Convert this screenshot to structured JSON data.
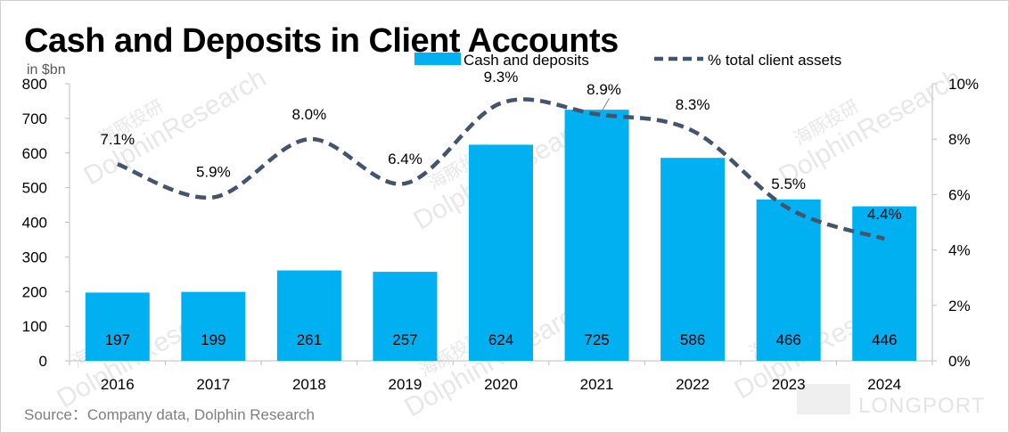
{
  "title": "Cash and Deposits in Client Accounts",
  "source": "Source：Company data, Dolphin Research",
  "watermark": {
    "brand": "DolphinResearch",
    "brand_cn": "海豚投研",
    "corner": "LONGPORT"
  },
  "colors": {
    "bar": "#00b0f0",
    "line": "#44546a",
    "text": "#000000",
    "axis": "#bfbfbf",
    "watermark": "#e8e8e8"
  },
  "chart_data": {
    "type": "bar",
    "categories": [
      "2016",
      "2017",
      "2018",
      "2019",
      "2020",
      "2021",
      "2022",
      "2023",
      "2024"
    ],
    "y_unit_label": "in $bn",
    "ylim": [
      0,
      800
    ],
    "yticks": [
      0,
      100,
      200,
      300,
      400,
      500,
      600,
      700,
      800
    ],
    "y2lim": [
      0,
      10
    ],
    "y2ticks": [
      "0%",
      "2%",
      "4%",
      "6%",
      "8%",
      "10%"
    ],
    "legend_position": "top-right",
    "grid": false,
    "series": [
      {
        "name": "Cash and deposits",
        "type": "bar",
        "axis": "left",
        "values": [
          197,
          199,
          261,
          257,
          624,
          725,
          586,
          466,
          446
        ],
        "labels": [
          "197",
          "199",
          "261",
          "257",
          "624",
          "725",
          "586",
          "466",
          "446"
        ]
      },
      {
        "name": "% total client assets",
        "type": "line",
        "axis": "right",
        "style": "dashed-smooth",
        "values": [
          7.1,
          5.9,
          8.0,
          6.4,
          9.3,
          8.9,
          8.3,
          5.5,
          4.4
        ],
        "labels": [
          "7.1%",
          "5.9%",
          "8.0%",
          "6.4%",
          "9.3%",
          "8.9%",
          "8.3%",
          "5.5%",
          "4.4%"
        ]
      }
    ]
  }
}
